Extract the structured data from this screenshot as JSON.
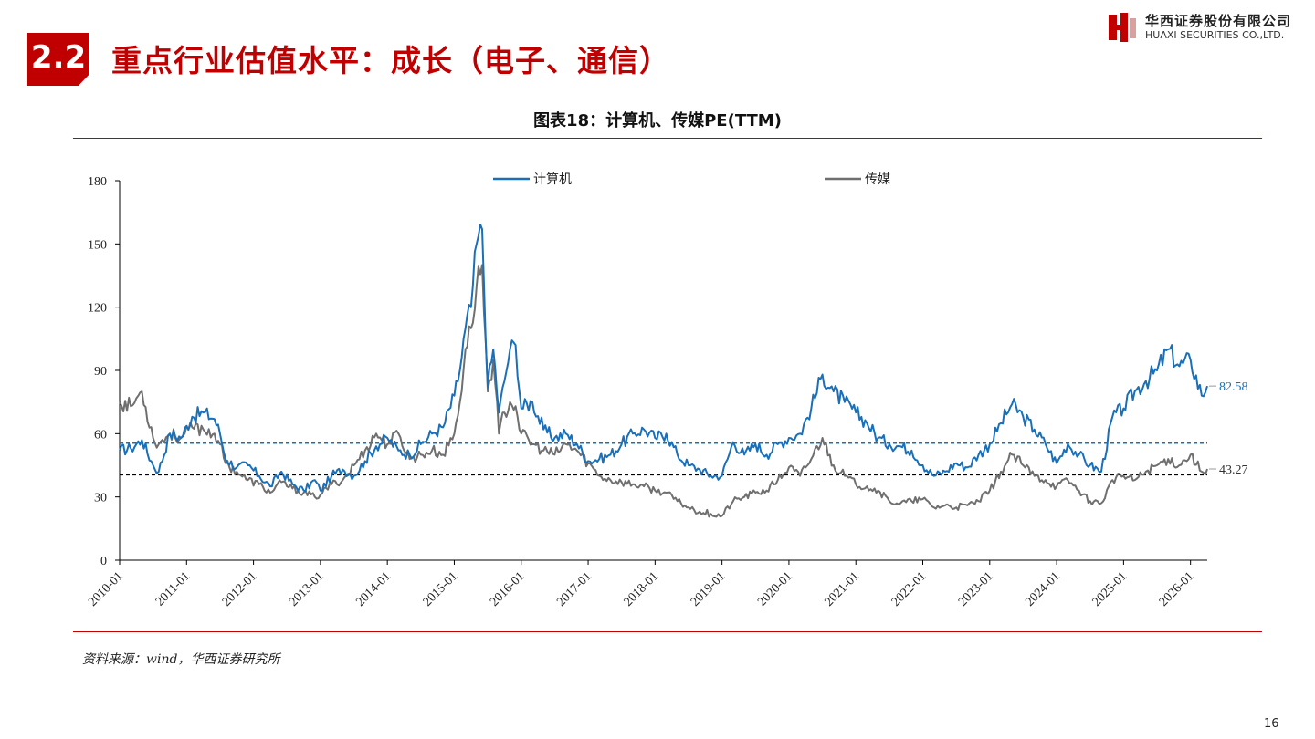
{
  "header": {
    "section_badge": "2.2",
    "title": "重点行业估值水平：成长（电子、通信）",
    "logo_cn": "华西证券股份有限公司",
    "logo_en": "HUAXI SECURITIES CO.,LTD."
  },
  "chart_title": "图表18：计算机、传媒PE(TTM)",
  "source": "资料来源：wind，华西证券研究所",
  "page_number": "16",
  "colors": {
    "brand_red": "#c00000",
    "computer": "#1a70b8",
    "media": "#6f6f6f"
  },
  "chart_data": {
    "type": "line",
    "title": "图表18：计算机、传媒PE(TTM)",
    "xlabel": "",
    "ylabel": "",
    "ylim": [
      0,
      180
    ],
    "yticks": [
      "0",
      "30",
      "60",
      "90",
      "120",
      "150",
      "180"
    ],
    "xticks": [
      "2010-01",
      "2011-01",
      "2012-01",
      "2013-01",
      "2014-01",
      "2015-01",
      "2016-01",
      "2017-01",
      "2018-01",
      "2019-01",
      "2020-01",
      "2021-01",
      "2022-01",
      "2023-01",
      "2024-01",
      "2025-01",
      "2026-01"
    ],
    "x_range": [
      "2010-01",
      "2026-04"
    ],
    "legend_position": "top",
    "grid": false,
    "series": [
      {
        "name": "计算机",
        "color": "#1a70b8",
        "points": [
          [
            "2010-01",
            52
          ],
          [
            "2010-03",
            53
          ],
          [
            "2010-05",
            57
          ],
          [
            "2010-07",
            45
          ],
          [
            "2010-08",
            42
          ],
          [
            "2010-10",
            60
          ],
          [
            "2010-12",
            58
          ],
          [
            "2011-02",
            68
          ],
          [
            "2011-04",
            70
          ],
          [
            "2011-06",
            67
          ],
          [
            "2011-07",
            60
          ],
          [
            "2011-08",
            48
          ],
          [
            "2011-10",
            44
          ],
          [
            "2011-12",
            45
          ],
          [
            "2012-02",
            40
          ],
          [
            "2012-04",
            35
          ],
          [
            "2012-06",
            42
          ],
          [
            "2012-08",
            36
          ],
          [
            "2012-10",
            33
          ],
          [
            "2012-12",
            38
          ],
          [
            "2013-01",
            33
          ],
          [
            "2013-03",
            40
          ],
          [
            "2013-05",
            43
          ],
          [
            "2013-07",
            40
          ],
          [
            "2013-09",
            47
          ],
          [
            "2013-11",
            54
          ],
          [
            "2014-01",
            58
          ],
          [
            "2014-03",
            52
          ],
          [
            "2014-05",
            50
          ],
          [
            "2014-07",
            55
          ],
          [
            "2014-09",
            60
          ],
          [
            "2014-11",
            63
          ],
          [
            "2015-01",
            78
          ],
          [
            "2015-02",
            90
          ],
          [
            "2015-03",
            110
          ],
          [
            "2015-04",
            120
          ],
          [
            "2015-05",
            150
          ],
          [
            "2015-06",
            157
          ],
          [
            "2015-07",
            82
          ],
          [
            "2015-08",
            100
          ],
          [
            "2015-09",
            70
          ],
          [
            "2015-10",
            85
          ],
          [
            "2015-11",
            100
          ],
          [
            "2015-12",
            102
          ],
          [
            "2016-01",
            72
          ],
          [
            "2016-03",
            75
          ],
          [
            "2016-05",
            62
          ],
          [
            "2016-07",
            58
          ],
          [
            "2016-09",
            60
          ],
          [
            "2016-11",
            55
          ],
          [
            "2017-01",
            47
          ],
          [
            "2017-03",
            48
          ],
          [
            "2017-05",
            50
          ],
          [
            "2017-07",
            55
          ],
          [
            "2017-09",
            60
          ],
          [
            "2017-11",
            62
          ],
          [
            "2018-01",
            58
          ],
          [
            "2018-03",
            60
          ],
          [
            "2018-05",
            50
          ],
          [
            "2018-07",
            45
          ],
          [
            "2018-09",
            43
          ],
          [
            "2018-11",
            40
          ],
          [
            "2019-01",
            40
          ],
          [
            "2019-03",
            56
          ],
          [
            "2019-05",
            50
          ],
          [
            "2019-07",
            55
          ],
          [
            "2019-09",
            50
          ],
          [
            "2019-11",
            55
          ],
          [
            "2020-01",
            58
          ],
          [
            "2020-03",
            60
          ],
          [
            "2020-05",
            72
          ],
          [
            "2020-07",
            88
          ],
          [
            "2020-09",
            80
          ],
          [
            "2020-11",
            75
          ],
          [
            "2021-01",
            70
          ],
          [
            "2021-03",
            65
          ],
          [
            "2021-05",
            58
          ],
          [
            "2021-07",
            55
          ],
          [
            "2021-09",
            54
          ],
          [
            "2021-11",
            52
          ],
          [
            "2022-01",
            45
          ],
          [
            "2022-03",
            40
          ],
          [
            "2022-05",
            42
          ],
          [
            "2022-07",
            46
          ],
          [
            "2022-09",
            44
          ],
          [
            "2022-11",
            50
          ],
          [
            "2023-01",
            55
          ],
          [
            "2023-03",
            65
          ],
          [
            "2023-05",
            74
          ],
          [
            "2023-07",
            68
          ],
          [
            "2023-09",
            62
          ],
          [
            "2023-11",
            55
          ],
          [
            "2024-01",
            46
          ],
          [
            "2024-03",
            55
          ],
          [
            "2024-05",
            50
          ],
          [
            "2024-07",
            45
          ],
          [
            "2024-09",
            42
          ],
          [
            "2024-11",
            68
          ],
          [
            "2025-01",
            72
          ],
          [
            "2025-03",
            80
          ],
          [
            "2025-05",
            85
          ],
          [
            "2025-07",
            90
          ],
          [
            "2025-09",
            100
          ],
          [
            "2025-11",
            92
          ],
          [
            "2026-01",
            95
          ],
          [
            "2026-03",
            78
          ],
          [
            "2026-04",
            82.58
          ]
        ]
      },
      {
        "name": "传媒",
        "color": "#6f6f6f",
        "points": [
          [
            "2010-01",
            75
          ],
          [
            "2010-03",
            73
          ],
          [
            "2010-05",
            80
          ],
          [
            "2010-07",
            58
          ],
          [
            "2010-08",
            55
          ],
          [
            "2010-10",
            60
          ],
          [
            "2010-12",
            58
          ],
          [
            "2011-02",
            63
          ],
          [
            "2011-04",
            62
          ],
          [
            "2011-06",
            60
          ],
          [
            "2011-07",
            55
          ],
          [
            "2011-08",
            46
          ],
          [
            "2011-10",
            42
          ],
          [
            "2011-12",
            38
          ],
          [
            "2012-02",
            36
          ],
          [
            "2012-04",
            32
          ],
          [
            "2012-06",
            37
          ],
          [
            "2012-08",
            34
          ],
          [
            "2012-10",
            32
          ],
          [
            "2012-12",
            30
          ],
          [
            "2013-01",
            31
          ],
          [
            "2013-03",
            36
          ],
          [
            "2013-05",
            38
          ],
          [
            "2013-07",
            45
          ],
          [
            "2013-09",
            52
          ],
          [
            "2013-11",
            60
          ],
          [
            "2014-01",
            55
          ],
          [
            "2014-03",
            60
          ],
          [
            "2014-05",
            48
          ],
          [
            "2014-07",
            50
          ],
          [
            "2014-09",
            52
          ],
          [
            "2014-11",
            50
          ],
          [
            "2015-01",
            60
          ],
          [
            "2015-02",
            75
          ],
          [
            "2015-03",
            100
          ],
          [
            "2015-04",
            110
          ],
          [
            "2015-05",
            130
          ],
          [
            "2015-06",
            140
          ],
          [
            "2015-07",
            80
          ],
          [
            "2015-08",
            95
          ],
          [
            "2015-09",
            60
          ],
          [
            "2015-10",
            70
          ],
          [
            "2015-11",
            75
          ],
          [
            "2015-12",
            73
          ],
          [
            "2016-01",
            60
          ],
          [
            "2016-03",
            55
          ],
          [
            "2016-05",
            52
          ],
          [
            "2016-07",
            50
          ],
          [
            "2016-09",
            55
          ],
          [
            "2016-11",
            52
          ],
          [
            "2017-01",
            46
          ],
          [
            "2017-03",
            40
          ],
          [
            "2017-05",
            38
          ],
          [
            "2017-07",
            37
          ],
          [
            "2017-09",
            36
          ],
          [
            "2017-11",
            35
          ],
          [
            "2018-01",
            33
          ],
          [
            "2018-03",
            32
          ],
          [
            "2018-05",
            28
          ],
          [
            "2018-07",
            25
          ],
          [
            "2018-09",
            23
          ],
          [
            "2018-11",
            22
          ],
          [
            "2019-01",
            21
          ],
          [
            "2019-03",
            28
          ],
          [
            "2019-05",
            30
          ],
          [
            "2019-07",
            32
          ],
          [
            "2019-09",
            33
          ],
          [
            "2019-11",
            38
          ],
          [
            "2020-01",
            44
          ],
          [
            "2020-03",
            40
          ],
          [
            "2020-05",
            48
          ],
          [
            "2020-07",
            58
          ],
          [
            "2020-09",
            45
          ],
          [
            "2020-11",
            40
          ],
          [
            "2021-01",
            36
          ],
          [
            "2021-03",
            35
          ],
          [
            "2021-05",
            33
          ],
          [
            "2021-07",
            28
          ],
          [
            "2021-09",
            27
          ],
          [
            "2021-11",
            28
          ],
          [
            "2022-01",
            29
          ],
          [
            "2022-03",
            25
          ],
          [
            "2022-05",
            26
          ],
          [
            "2022-07",
            25
          ],
          [
            "2022-09",
            26
          ],
          [
            "2022-11",
            28
          ],
          [
            "2023-01",
            33
          ],
          [
            "2023-03",
            42
          ],
          [
            "2023-05",
            50
          ],
          [
            "2023-07",
            45
          ],
          [
            "2023-09",
            40
          ],
          [
            "2023-11",
            38
          ],
          [
            "2024-01",
            35
          ],
          [
            "2024-03",
            38
          ],
          [
            "2024-05",
            33
          ],
          [
            "2024-07",
            28
          ],
          [
            "2024-09",
            27
          ],
          [
            "2024-11",
            38
          ],
          [
            "2025-01",
            40
          ],
          [
            "2025-03",
            38
          ],
          [
            "2025-05",
            42
          ],
          [
            "2025-07",
            45
          ],
          [
            "2025-09",
            48
          ],
          [
            "2025-11",
            45
          ],
          [
            "2026-01",
            50
          ],
          [
            "2026-03",
            42
          ],
          [
            "2026-04",
            43.27
          ]
        ]
      }
    ],
    "reference_lines": [
      {
        "value": 55.5,
        "color": "#1a70b8",
        "style": "dashed"
      },
      {
        "value": 40.5,
        "color": "#000000",
        "style": "dashed"
      }
    ],
    "end_labels": [
      {
        "series": "计算机",
        "text": "82.58",
        "value": 82.58
      },
      {
        "series": "传媒",
        "text": "43.27",
        "value": 43.27
      }
    ]
  }
}
